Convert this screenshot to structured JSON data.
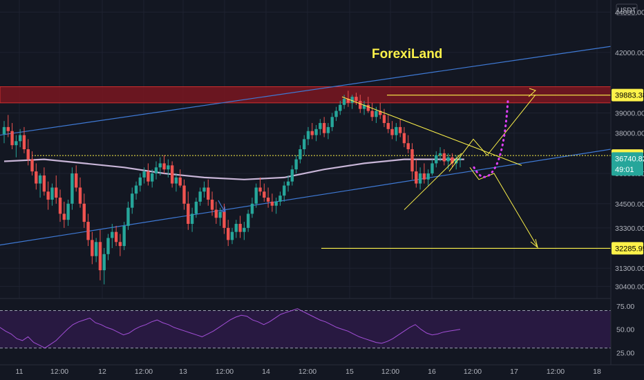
{
  "watermark": "ForexiLand",
  "currency_label": "USDT",
  "price_tags": [
    {
      "label": "39883.38",
      "value": 39883.38,
      "bg": "#fdf24a",
      "fg": "#000000"
    },
    {
      "label": "36886.11",
      "value": 36886.11,
      "bg": "#fdf24a",
      "fg": "#000000"
    },
    {
      "label": "36740.82",
      "value": 36740.82,
      "bg": "#26a69a",
      "fg": "#ffffff"
    },
    {
      "label": "49:01",
      "value": 36200,
      "bg": "#26a69a",
      "fg": "#ffffff"
    },
    {
      "label": "32285.95",
      "value": 32285.95,
      "bg": "#fdf24a",
      "fg": "#000000"
    }
  ],
  "chart_data": {
    "type": "candlestick",
    "y_axis_ticks": [
      44000,
      42000,
      39000,
      38000,
      36000,
      34500,
      33300,
      32300,
      31300,
      30400
    ],
    "y_axis_labels": [
      "44000.00",
      "42000.00",
      "39000.00",
      "38000.00",
      "36000.00",
      "34500.00",
      "33300.00",
      "32300.00",
      "31300.00",
      "30400.00"
    ],
    "x_axis_labels": [
      "11",
      "12:00",
      "12",
      "12:00",
      "13",
      "12:00",
      "14",
      "12:00",
      "15",
      "12:00",
      "16",
      "12:00",
      "17",
      "12:00",
      "18"
    ],
    "ohlc": [
      [
        37950,
        38600,
        37500,
        38300
      ],
      [
        38300,
        38900,
        37800,
        38100
      ],
      [
        38100,
        38500,
        37200,
        37400
      ],
      [
        37400,
        37900,
        36800,
        37600
      ],
      [
        37600,
        38200,
        37300,
        37900
      ],
      [
        37900,
        38300,
        37000,
        37200
      ],
      [
        37200,
        37700,
        36400,
        36700
      ],
      [
        36700,
        37100,
        35900,
        36100
      ],
      [
        36100,
        36500,
        35200,
        35500
      ],
      [
        35500,
        36000,
        34800,
        35900
      ],
      [
        35900,
        36300,
        34900,
        35100
      ],
      [
        35100,
        35600,
        34200,
        34700
      ],
      [
        34700,
        35500,
        34400,
        35300
      ],
      [
        35300,
        35900,
        34500,
        34800
      ],
      [
        34800,
        35200,
        33600,
        34000
      ],
      [
        34000,
        34600,
        33300,
        33700
      ],
      [
        33700,
        34700,
        33400,
        34500
      ],
      [
        34500,
        36300,
        34200,
        36000
      ],
      [
        36000,
        36400,
        35100,
        35300
      ],
      [
        35300,
        35800,
        34300,
        34500
      ],
      [
        34500,
        35000,
        33300,
        33600
      ],
      [
        33600,
        34000,
        32400,
        32700
      ],
      [
        32700,
        33100,
        31500,
        31900
      ],
      [
        31900,
        32800,
        31600,
        32600
      ],
      [
        32600,
        33200,
        30700,
        31200
      ],
      [
        31200,
        32300,
        30500,
        32000
      ],
      [
        32000,
        33000,
        31700,
        32800
      ],
      [
        32800,
        33500,
        32300,
        33100
      ],
      [
        33100,
        33400,
        32400,
        32600
      ],
      [
        32600,
        33000,
        31900,
        32400
      ],
      [
        32400,
        33600,
        32200,
        33400
      ],
      [
        33400,
        34600,
        33200,
        34300
      ],
      [
        34300,
        35300,
        34000,
        35000
      ],
      [
        35000,
        35600,
        34700,
        35400
      ],
      [
        35400,
        36000,
        35100,
        35800
      ],
      [
        35800,
        36300,
        35500,
        36100
      ],
      [
        36100,
        36500,
        35400,
        35600
      ],
      [
        35600,
        36200,
        35300,
        36000
      ],
      [
        36000,
        36600,
        35700,
        36300
      ],
      [
        36300,
        36800,
        35900,
        36500
      ],
      [
        36500,
        36900,
        36000,
        36200
      ],
      [
        36200,
        36700,
        35800,
        36400
      ],
      [
        36400,
        36600,
        35300,
        35500
      ],
      [
        35500,
        36000,
        35100,
        35800
      ],
      [
        35800,
        36200,
        35300,
        35400
      ],
      [
        35400,
        35700,
        34200,
        34500
      ],
      [
        34500,
        35100,
        33200,
        33500
      ],
      [
        33500,
        34300,
        33100,
        34000
      ],
      [
        34000,
        34800,
        33800,
        34600
      ],
      [
        34600,
        35300,
        34400,
        35100
      ],
      [
        35100,
        35600,
        34800,
        35300
      ],
      [
        35300,
        35700,
        34400,
        34700
      ],
      [
        34700,
        35100,
        33900,
        34200
      ],
      [
        34200,
        34600,
        33500,
        33800
      ],
      [
        33800,
        34300,
        33400,
        34100
      ],
      [
        34100,
        34500,
        33000,
        33300
      ],
      [
        33300,
        33700,
        32400,
        32700
      ],
      [
        32700,
        33300,
        32500,
        33100
      ],
      [
        33100,
        33700,
        32800,
        33500
      ],
      [
        33500,
        33900,
        32800,
        33100
      ],
      [
        33100,
        33600,
        32700,
        33300
      ],
      [
        33300,
        34200,
        33100,
        34000
      ],
      [
        34000,
        34800,
        33800,
        34500
      ],
      [
        34500,
        35500,
        34300,
        35300
      ],
      [
        35300,
        35800,
        34900,
        35100
      ],
      [
        35100,
        35500,
        34600,
        34800
      ],
      [
        34800,
        35300,
        34300,
        34600
      ],
      [
        34600,
        35000,
        34100,
        34400
      ],
      [
        34400,
        34800,
        34000,
        34600
      ],
      [
        34600,
        35100,
        34400,
        34900
      ],
      [
        34900,
        35600,
        34600,
        35400
      ],
      [
        35400,
        35900,
        35100,
        35600
      ],
      [
        35600,
        36400,
        35400,
        36200
      ],
      [
        36200,
        36900,
        36000,
        36700
      ],
      [
        36700,
        37400,
        36500,
        37200
      ],
      [
        37200,
        37900,
        36900,
        37700
      ],
      [
        37700,
        38300,
        37400,
        38100
      ],
      [
        38100,
        38500,
        37700,
        37900
      ],
      [
        37900,
        38400,
        37600,
        38200
      ],
      [
        38200,
        38700,
        37900,
        38500
      ],
      [
        38500,
        38800,
        37800,
        38000
      ],
      [
        38000,
        38500,
        37700,
        38300
      ],
      [
        38300,
        39000,
        38100,
        38800
      ],
      [
        38800,
        39300,
        38600,
        39100
      ],
      [
        39100,
        39600,
        38900,
        39400
      ],
      [
        39400,
        39900,
        39200,
        39700
      ],
      [
        39700,
        40100,
        39300,
        39500
      ],
      [
        39500,
        39900,
        39200,
        39800
      ],
      [
        39800,
        40000,
        39400,
        39600
      ],
      [
        39600,
        39900,
        39000,
        39200
      ],
      [
        39200,
        39600,
        38900,
        39400
      ],
      [
        39400,
        39800,
        39000,
        39100
      ],
      [
        39100,
        39500,
        38600,
        38800
      ],
      [
        38800,
        39300,
        38500,
        39100
      ],
      [
        39100,
        39500,
        38700,
        38900
      ],
      [
        38900,
        39200,
        38300,
        38500
      ],
      [
        38500,
        38900,
        38000,
        38200
      ],
      [
        38200,
        38600,
        37700,
        37900
      ],
      [
        37900,
        38500,
        37600,
        38300
      ],
      [
        38300,
        38700,
        37800,
        38000
      ],
      [
        38000,
        38300,
        37300,
        37500
      ],
      [
        37500,
        37900,
        37000,
        37200
      ],
      [
        37200,
        37500,
        35700,
        36100
      ],
      [
        36100,
        36700,
        35300,
        35500
      ],
      [
        35500,
        36300,
        35200,
        36000
      ],
      [
        36000,
        36500,
        35500,
        35700
      ],
      [
        35700,
        36200,
        35400,
        36000
      ],
      [
        36000,
        36700,
        35900,
        36500
      ],
      [
        36500,
        37100,
        36300,
        36900
      ],
      [
        36900,
        37300,
        36600,
        37000
      ],
      [
        37000,
        37200,
        36400,
        36600
      ],
      [
        36600,
        37000,
        36200,
        36800
      ],
      [
        36800,
        37000,
        36300,
        36500
      ],
      [
        36500,
        36900,
        36200,
        36700
      ],
      [
        36700,
        36900,
        36300,
        36740.82
      ]
    ],
    "ma_line": [
      [
        0,
        36600
      ],
      [
        10,
        36700
      ],
      [
        20,
        36500
      ],
      [
        30,
        36300
      ],
      [
        40,
        36000
      ],
      [
        50,
        35800
      ],
      [
        60,
        35700
      ],
      [
        70,
        35800
      ],
      [
        80,
        36200
      ],
      [
        90,
        36500
      ],
      [
        100,
        36700
      ],
      [
        115,
        36700
      ]
    ],
    "horizontal_levels": [
      39883.38,
      36886.11,
      32285.95
    ],
    "resistance_zone": [
      39500,
      40300
    ],
    "rsi": {
      "levels": [
        75,
        50,
        25
      ],
      "overbought": 70,
      "oversold": 30,
      "values": [
        52,
        48,
        45,
        40,
        38,
        42,
        36,
        33,
        30,
        34,
        38,
        44,
        50,
        55,
        58,
        60,
        62,
        57,
        55,
        52,
        50,
        47,
        44,
        46,
        50,
        53,
        55,
        58,
        60,
        57,
        55,
        52,
        50,
        48,
        46,
        44,
        42,
        45,
        48,
        52,
        56,
        60,
        63,
        65,
        64,
        60,
        58,
        55,
        58,
        62,
        66,
        68,
        70,
        72,
        69,
        66,
        63,
        60,
        58,
        55,
        52,
        50,
        48,
        45,
        42,
        40,
        38,
        36,
        35,
        37,
        40,
        44,
        48,
        52,
        55,
        50,
        46,
        44,
        45,
        47,
        48,
        49,
        50
      ]
    }
  }
}
